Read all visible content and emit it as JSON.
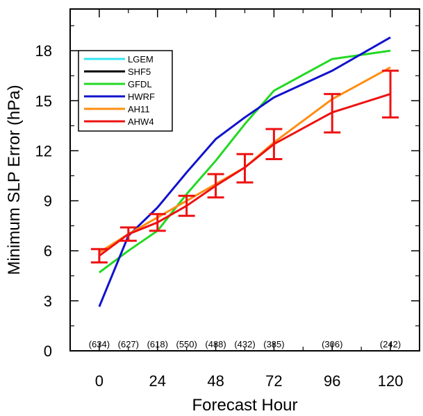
{
  "chart_data": {
    "type": "line",
    "xlabel": "Forecast Hour",
    "ylabel": "Minimum SLP Error (hPa)",
    "xlim": [
      -12,
      132
    ],
    "ylim": [
      0,
      20.5
    ],
    "x_ticks": [
      0,
      24,
      48,
      72,
      96,
      120
    ],
    "y_ticks": [
      0,
      3,
      6,
      9,
      12,
      15,
      18
    ],
    "x_minor_step": 12,
    "y_minor_step": 1.5,
    "sample_counts": [
      {
        "x": 0,
        "label": "(634)"
      },
      {
        "x": 12,
        "label": "(627)"
      },
      {
        "x": 24,
        "label": "(618)"
      },
      {
        "x": 36,
        "label": "(550)"
      },
      {
        "x": 48,
        "label": "(488)"
      },
      {
        "x": 60,
        "label": "(432)"
      },
      {
        "x": 72,
        "label": "(385)"
      },
      {
        "x": 96,
        "label": "(306)"
      },
      {
        "x": 120,
        "label": "(242)"
      }
    ],
    "legend_position": "top-left",
    "series": [
      {
        "name": "LGEM",
        "color": "#33e5f2",
        "x": [],
        "y": []
      },
      {
        "name": "SHF5",
        "color": "#000000",
        "x": [],
        "y": []
      },
      {
        "name": "GFDL",
        "color": "#22d822",
        "x": [
          0,
          12,
          24,
          36,
          48,
          60,
          72,
          96,
          120
        ],
        "y": [
          4.7,
          6.0,
          7.2,
          9.4,
          11.4,
          13.6,
          15.6,
          17.5,
          18.0
        ]
      },
      {
        "name": "HWRF",
        "color": "#1111cc",
        "x": [
          0,
          12,
          24,
          36,
          48,
          60,
          72,
          96,
          120
        ],
        "y": [
          2.65,
          6.9,
          8.6,
          10.7,
          12.7,
          14.0,
          15.2,
          16.8,
          18.8
        ]
      },
      {
        "name": "AH11",
        "color": "#ff8c11",
        "x": [
          0,
          12,
          24,
          36,
          48,
          60,
          72,
          96,
          120
        ],
        "y": [
          5.9,
          7.0,
          8.0,
          9.0,
          10.0,
          11.0,
          12.5,
          15.1,
          17.0
        ]
      },
      {
        "name": "AHW4",
        "color": "#ee1111",
        "x": [
          0,
          12,
          24,
          36,
          48,
          60,
          72,
          96,
          120
        ],
        "y": [
          5.7,
          7.0,
          7.7,
          8.7,
          9.9,
          11.0,
          12.4,
          14.3,
          15.4
        ],
        "error_low": [
          5.3,
          6.6,
          7.2,
          8.1,
          9.2,
          10.1,
          11.5,
          13.1,
          14.0
        ],
        "error_high": [
          6.1,
          7.4,
          8.2,
          9.3,
          10.6,
          11.8,
          13.3,
          15.4,
          16.8
        ]
      }
    ]
  }
}
